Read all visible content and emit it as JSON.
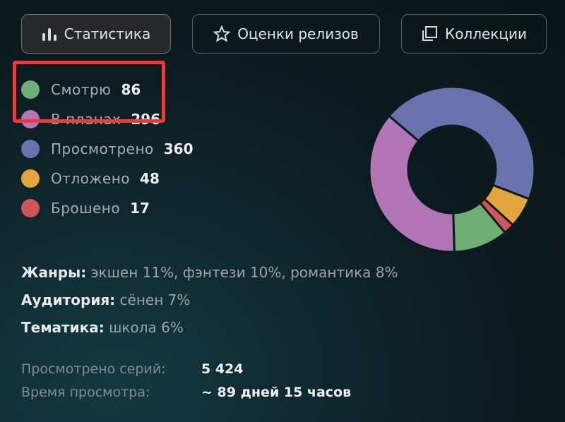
{
  "tabs": [
    {
      "label": "Статистика",
      "icon": "bar-chart-icon",
      "active": true
    },
    {
      "label": "Оценки релизов",
      "icon": "star-icon"
    },
    {
      "label": "Коллекции",
      "icon": "collections-icon"
    }
  ],
  "chart_data": {
    "type": "pie",
    "donut": true,
    "categories": [
      "Смотрю",
      "В планах",
      "Просмотрено",
      "Отложено",
      "Брошено"
    ],
    "values": [
      86,
      296,
      360,
      48,
      17
    ],
    "colors": [
      "#6fae72",
      "#b275b6",
      "#6a73ae",
      "#e5a53e",
      "#d0565a"
    ]
  },
  "info": {
    "genres_label": "Жанры:",
    "genres_value": "экшен 11%, фэнтези 10%, романтика 8%",
    "audience_label": "Аудитория:",
    "audience_value": "сёнен 7%",
    "theme_label": "Тематика:",
    "theme_value": "школа 6%"
  },
  "stats": {
    "episodes_label": "Просмотрено серий:",
    "episodes_value": "5 424",
    "time_label": "Время просмотра:",
    "time_value": "~ 89 дней 15 часов"
  }
}
